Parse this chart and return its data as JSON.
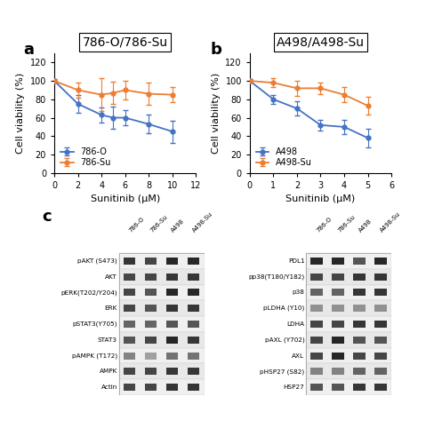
{
  "panel_a": {
    "title": "786-O/786-Su",
    "xlabel": "Sunitinib (μM)",
    "ylabel": "Cell viability (%)",
    "blue_x": [
      0,
      2,
      4,
      5,
      6,
      8,
      10
    ],
    "blue_y": [
      100,
      75,
      63,
      60,
      60,
      53,
      45
    ],
    "blue_err": [
      2,
      10,
      8,
      12,
      8,
      10,
      12
    ],
    "orange_x": [
      0,
      2,
      4,
      5,
      6,
      8,
      10
    ],
    "orange_y": [
      100,
      90,
      85,
      87,
      90,
      86,
      85
    ],
    "orange_err": [
      2,
      8,
      18,
      12,
      10,
      12,
      8
    ],
    "blue_label": "786-O",
    "orange_label": "786-Su",
    "xlim": [
      0,
      12
    ],
    "ylim": [
      0,
      130
    ],
    "xticks": [
      0,
      2,
      4,
      6,
      8,
      10,
      12
    ],
    "yticks": [
      0,
      20,
      40,
      60,
      80,
      100,
      120
    ]
  },
  "panel_b": {
    "title": "A498/A498-Su",
    "xlabel": "Sunitinib (μM)",
    "ylabel": "Cell viability (%)",
    "blue_x": [
      0,
      1,
      2,
      3,
      4,
      5
    ],
    "blue_y": [
      100,
      80,
      70,
      52,
      50,
      38
    ],
    "blue_err": [
      2,
      5,
      8,
      6,
      8,
      10
    ],
    "orange_x": [
      0,
      1,
      2,
      3,
      4,
      5
    ],
    "orange_y": [
      100,
      98,
      92,
      92,
      85,
      73
    ],
    "orange_err": [
      2,
      5,
      8,
      6,
      8,
      10
    ],
    "blue_label": "A498",
    "orange_label": "A498-Su",
    "xlim": [
      0,
      6
    ],
    "ylim": [
      0,
      130
    ],
    "xticks": [
      0,
      1,
      2,
      3,
      4,
      5,
      6
    ],
    "yticks": [
      0,
      20,
      40,
      60,
      80,
      100,
      120
    ]
  },
  "blue_color": "#4472C4",
  "orange_color": "#ED7D31",
  "left_blot_labels": [
    "pAKT (S473)",
    "AKT",
    "pERK(T202/Y204)",
    "ERK",
    "pSTAT3(Y705)",
    "STAT3",
    "pAMPK (T172)",
    "AMPK",
    "Actin"
  ],
  "right_blot_labels": [
    "PDL1",
    "pp38(T180/Y182)",
    "p38",
    "pLDHA (Y10)",
    "LDHA",
    "pAXL (Y702)",
    "AXL",
    "pHSP27 (S82)",
    "HSP27"
  ],
  "col_headers": [
    "786-O",
    "786-Su",
    "A498",
    "A498-Su"
  ],
  "left_band_colors": [
    [
      "#222222",
      "#333333",
      "#111111",
      "#111111"
    ],
    [
      "#333333",
      "#333333",
      "#222222",
      "#222222"
    ],
    [
      "#333333",
      "#444444",
      "#111111",
      "#111111"
    ],
    [
      "#333333",
      "#444444",
      "#222222",
      "#222222"
    ],
    [
      "#555555",
      "#555555",
      "#444444",
      "#444444"
    ],
    [
      "#444444",
      "#333333",
      "#111111",
      "#222222"
    ],
    [
      "#777777",
      "#999999",
      "#666666",
      "#666666"
    ],
    [
      "#333333",
      "#333333",
      "#222222",
      "#222222"
    ],
    [
      "#333333",
      "#333333",
      "#222222",
      "#222222"
    ]
  ],
  "right_band_colors": [
    [
      "#111111",
      "#111111",
      "#444444",
      "#111111"
    ],
    [
      "#333333",
      "#333333",
      "#222222",
      "#222222"
    ],
    [
      "#555555",
      "#555555",
      "#222222",
      "#222222"
    ],
    [
      "#888888",
      "#888888",
      "#888888",
      "#888888"
    ],
    [
      "#333333",
      "#333333",
      "#222222",
      "#222222"
    ],
    [
      "#333333",
      "#111111",
      "#444444",
      "#444444"
    ],
    [
      "#333333",
      "#111111",
      "#333333",
      "#333333"
    ],
    [
      "#777777",
      "#777777",
      "#555555",
      "#555555"
    ],
    [
      "#444444",
      "#444444",
      "#222222",
      "#222222"
    ]
  ],
  "axis_label_fontsize": 8,
  "tick_fontsize": 7,
  "legend_fontsize": 7,
  "title_fontsize": 10
}
